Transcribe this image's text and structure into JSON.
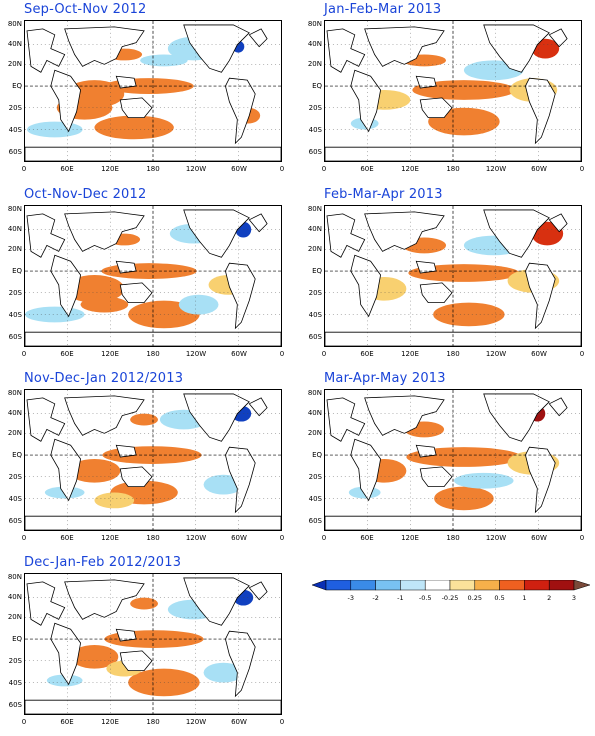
{
  "panels": [
    {
      "title": "Sep-Oct-Nov 2012"
    },
    {
      "title": "Jan-Feb-Mar 2013"
    },
    {
      "title": "Oct-Nov-Dec 2012"
    },
    {
      "title": "Feb-Mar-Apr 2013"
    },
    {
      "title": "Nov-Dec-Jan 2012/2013"
    },
    {
      "title": "Mar-Apr-May 2013"
    },
    {
      "title": "Dec-Jan-Feb 2012/2013"
    }
  ],
  "axes": {
    "y_ticks": [
      "80N",
      "40N",
      "20N",
      "EQ",
      "20S",
      "40S",
      "60S"
    ],
    "x_ticks": [
      "0",
      "60E",
      "120E",
      "180",
      "120W",
      "60W",
      "0"
    ]
  },
  "colorbar": {
    "labels": [
      "-3",
      "-2",
      "-1",
      "-0.5",
      "-0.25",
      "0.25",
      "0.5",
      "1",
      "2",
      "3"
    ],
    "colors": [
      "#0a2fb4",
      "#1f5fe0",
      "#3a8be8",
      "#78c2f2",
      "#bfe6f8",
      "#ffffff",
      "#fbe29a",
      "#f7b04a",
      "#ef6020",
      "#d02010",
      "#a01010",
      "#7a4a3a"
    ]
  },
  "colors": {
    "title": "#1a44d8",
    "warm_light": "#f8d070",
    "warm": "#f08030",
    "warm_strong": "#d83010",
    "warm_max": "#a01010",
    "cool_light": "#a8e0f5",
    "cool": "#4a98e8",
    "cool_strong": "#1040c0"
  }
}
